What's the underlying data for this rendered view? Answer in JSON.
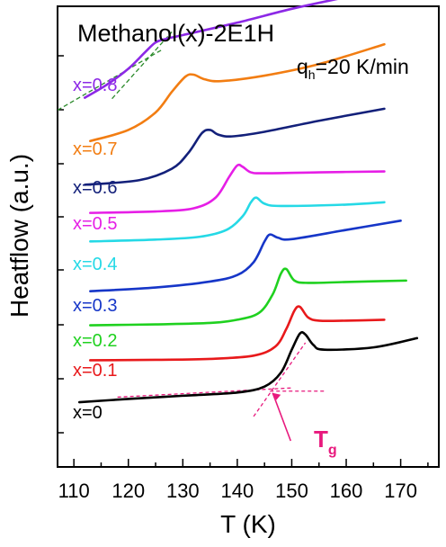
{
  "chart_data": {
    "type": "line",
    "title": "Methanol(x)-2E1H",
    "annotation_rate": {
      "q": "q",
      "sub": "h",
      "rest": "=20 K/min"
    },
    "xlabel": "T (K)",
    "ylabel": "Heatflow (a.u.)",
    "xlim": [
      107,
      177
    ],
    "xticks": [
      "110",
      "120",
      "130",
      "140",
      "150",
      "160",
      "170"
    ],
    "xtick_values": [
      110,
      120,
      130,
      140,
      150,
      160,
      170
    ],
    "y_scale": "arbitrary units, curves vertically offset",
    "ylim": [
      0,
      10
    ],
    "tg_marker": {
      "symbol": "T",
      "sub": "g",
      "color": "#e8197d",
      "T": 146
    },
    "series": [
      {
        "name": "x=0",
        "color": "#000000",
        "x": [
          111,
          120,
          130,
          140,
          145,
          148,
          150,
          151.5,
          152.5,
          154,
          156,
          165,
          173
        ],
        "y": [
          1.21,
          1.28,
          1.35,
          1.42,
          1.55,
          1.85,
          2.35,
          2.7,
          2.68,
          2.45,
          2.35,
          2.4,
          2.6
        ]
      },
      {
        "name": "x=0.1",
        "color": "#e8191b",
        "x": [
          113,
          125,
          135,
          143,
          147,
          149,
          150.5,
          151.5,
          153,
          155,
          160,
          167
        ],
        "y": [
          2.12,
          2.13,
          2.15,
          2.22,
          2.42,
          2.8,
          3.2,
          3.28,
          3.05,
          2.98,
          2.98,
          3.0
        ]
      },
      {
        "name": "x=0.2",
        "color": "#1fd11f",
        "x": [
          113,
          125,
          135,
          140,
          144,
          146.5,
          148,
          149,
          150.5,
          153,
          160,
          171
        ],
        "y": [
          2.88,
          2.9,
          2.93,
          3.0,
          3.15,
          3.55,
          4.0,
          4.1,
          3.85,
          3.8,
          3.82,
          3.85
        ]
      },
      {
        "name": "x=0.3",
        "color": "#1636c8",
        "x": [
          113,
          125,
          135,
          140,
          143,
          145,
          146,
          147.5,
          150,
          160,
          170
        ],
        "y": [
          3.62,
          3.7,
          3.83,
          3.97,
          4.25,
          4.7,
          4.85,
          4.78,
          4.75,
          4.95,
          5.15
        ]
      },
      {
        "name": "x=0.4",
        "color": "#25d9e6",
        "x": [
          113,
          125,
          133,
          138,
          141,
          142.5,
          143.5,
          145,
          148,
          160,
          167
        ],
        "y": [
          4.7,
          4.74,
          4.8,
          4.95,
          5.25,
          5.55,
          5.65,
          5.52,
          5.47,
          5.5,
          5.55
        ]
      },
      {
        "name": "x=0.5",
        "color": "#e61ee6",
        "x": [
          113,
          125,
          132,
          136,
          138.5,
          140,
          141,
          142.5,
          145,
          155,
          167
        ],
        "y": [
          5.32,
          5.35,
          5.42,
          5.65,
          6.1,
          6.35,
          6.32,
          6.2,
          6.18,
          6.2,
          6.22
        ]
      },
      {
        "name": "x=0.6",
        "color": "#13207a",
        "x": [
          112,
          122,
          128,
          131,
          133.5,
          135,
          136.5,
          139,
          145,
          155,
          167
        ],
        "y": [
          5.93,
          6.03,
          6.28,
          6.62,
          7.05,
          7.12,
          7.02,
          6.98,
          7.08,
          7.32,
          7.58
        ]
      },
      {
        "name": "x=0.7",
        "color": "#f27d12",
        "x": [
          113,
          120,
          125,
          128,
          130.5,
          132,
          134,
          137,
          145,
          155,
          167
        ],
        "y": [
          6.88,
          7.12,
          7.5,
          7.95,
          8.28,
          8.32,
          8.22,
          8.18,
          8.3,
          8.55,
          8.98
        ]
      },
      {
        "name": "x=0.8",
        "color": "#8c28e6",
        "x": [
          112,
          116,
          120,
          123,
          125,
          127,
          130,
          140,
          150,
          159
        ],
        "y": [
          7.82,
          8.1,
          8.45,
          8.8,
          9.02,
          9.1,
          9.18,
          9.45,
          9.75,
          9.98
        ]
      }
    ]
  }
}
